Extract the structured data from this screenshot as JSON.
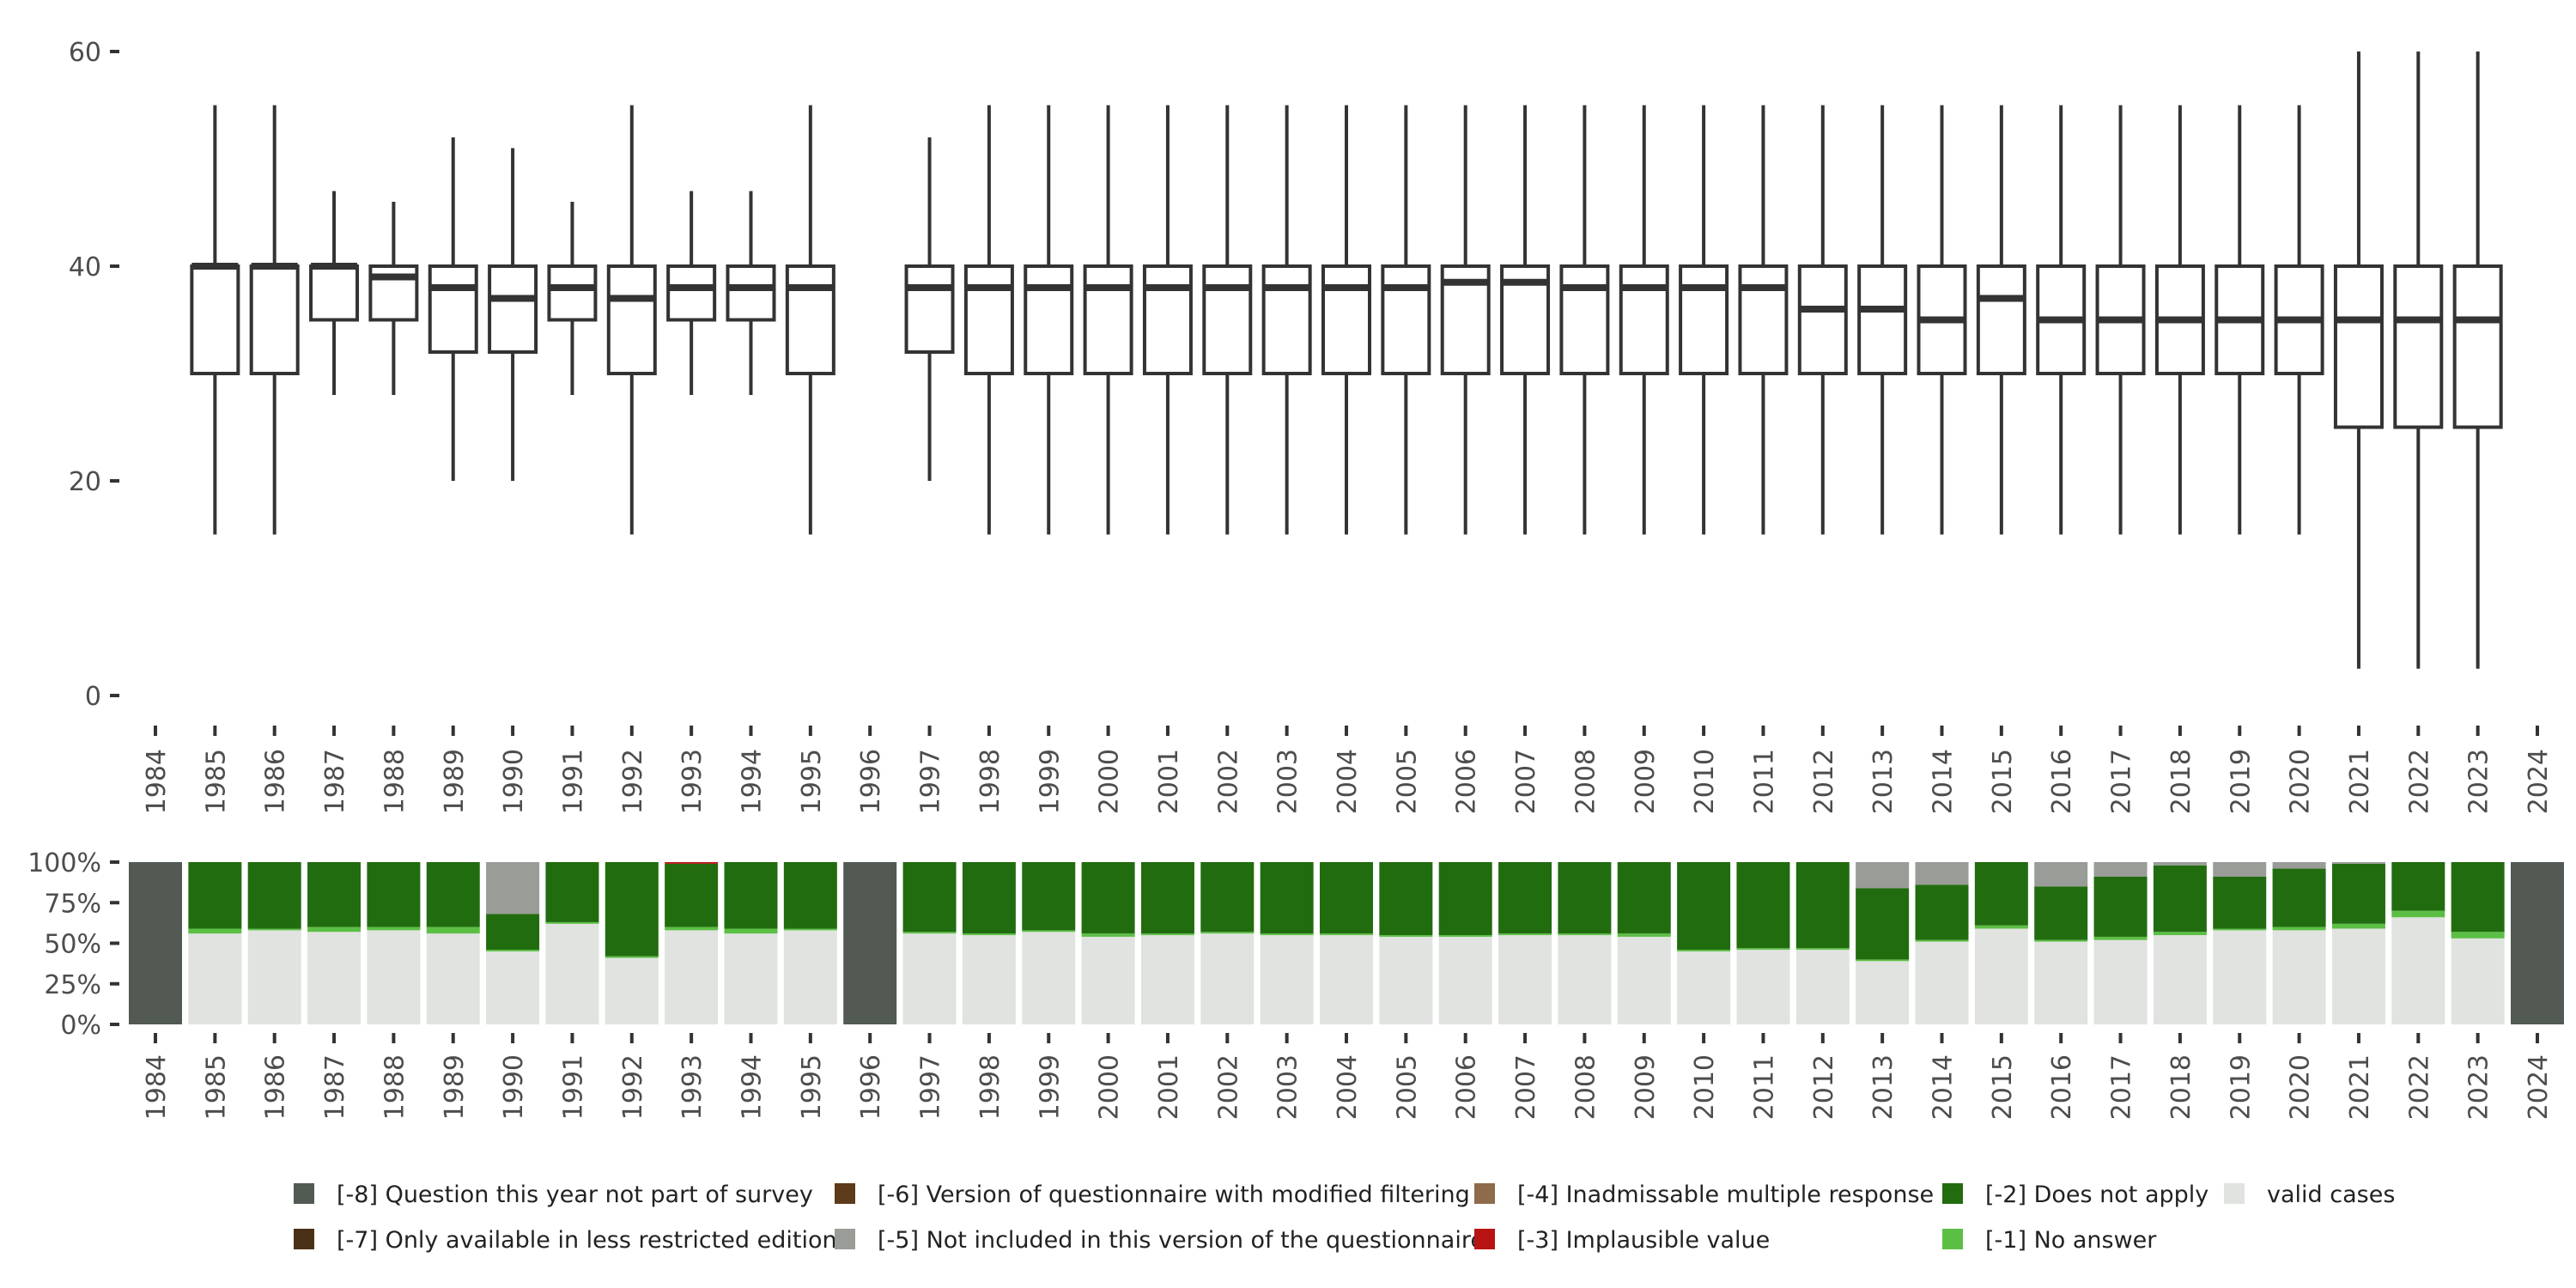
{
  "chart_data": [
    {
      "type": "boxplot",
      "years": [
        1984,
        1985,
        1986,
        1987,
        1988,
        1989,
        1990,
        1991,
        1992,
        1993,
        1994,
        1995,
        1996,
        1997,
        1998,
        1999,
        2000,
        2001,
        2002,
        2003,
        2004,
        2005,
        2006,
        2007,
        2008,
        2009,
        2010,
        2011,
        2012,
        2013,
        2014,
        2015,
        2016,
        2017,
        2018,
        2019,
        2020,
        2021,
        2022,
        2023,
        2024
      ],
      "ylim": [
        0,
        60
      ],
      "y_ticks": [
        0,
        20,
        40,
        60
      ],
      "boxes": [
        {
          "year": 1985,
          "min": 15,
          "q1": 30,
          "median": 40,
          "q3": 40,
          "max": 55
        },
        {
          "year": 1986,
          "min": 15,
          "q1": 30,
          "median": 40,
          "q3": 40,
          "max": 55
        },
        {
          "year": 1987,
          "min": 28,
          "q1": 35,
          "median": 40,
          "q3": 40,
          "max": 47
        },
        {
          "year": 1988,
          "min": 28,
          "q1": 35,
          "median": 39,
          "q3": 40,
          "max": 46
        },
        {
          "year": 1989,
          "min": 20,
          "q1": 32,
          "median": 38,
          "q3": 40,
          "max": 52
        },
        {
          "year": 1990,
          "min": 20,
          "q1": 32,
          "median": 37,
          "q3": 40,
          "max": 51
        },
        {
          "year": 1991,
          "min": 28,
          "q1": 35,
          "median": 38,
          "q3": 40,
          "max": 46
        },
        {
          "year": 1992,
          "min": 15,
          "q1": 30,
          "median": 37,
          "q3": 40,
          "max": 55
        },
        {
          "year": 1993,
          "min": 28,
          "q1": 35,
          "median": 38,
          "q3": 40,
          "max": 47
        },
        {
          "year": 1994,
          "min": 28,
          "q1": 35,
          "median": 38,
          "q3": 40,
          "max": 47
        },
        {
          "year": 1995,
          "min": 15,
          "q1": 30,
          "median": 38,
          "q3": 40,
          "max": 55
        },
        {
          "year": 1997,
          "min": 20,
          "q1": 32,
          "median": 38,
          "q3": 40,
          "max": 52
        },
        {
          "year": 1998,
          "min": 15,
          "q1": 30,
          "median": 38,
          "q3": 40,
          "max": 55
        },
        {
          "year": 1999,
          "min": 15,
          "q1": 30,
          "median": 38,
          "q3": 40,
          "max": 55
        },
        {
          "year": 2000,
          "min": 15,
          "q1": 30,
          "median": 38,
          "q3": 40,
          "max": 55
        },
        {
          "year": 2001,
          "min": 15,
          "q1": 30,
          "median": 38,
          "q3": 40,
          "max": 55
        },
        {
          "year": 2002,
          "min": 15,
          "q1": 30,
          "median": 38,
          "q3": 40,
          "max": 55
        },
        {
          "year": 2003,
          "min": 15,
          "q1": 30,
          "median": 38,
          "q3": 40,
          "max": 55
        },
        {
          "year": 2004,
          "min": 15,
          "q1": 30,
          "median": 38,
          "q3": 40,
          "max": 55
        },
        {
          "year": 2005,
          "min": 15,
          "q1": 30,
          "median": 38,
          "q3": 40,
          "max": 55
        },
        {
          "year": 2006,
          "min": 15,
          "q1": 30,
          "median": 38.5,
          "q3": 40,
          "max": 55
        },
        {
          "year": 2007,
          "min": 15,
          "q1": 30,
          "median": 38.5,
          "q3": 40,
          "max": 55
        },
        {
          "year": 2008,
          "min": 15,
          "q1": 30,
          "median": 38,
          "q3": 40,
          "max": 55
        },
        {
          "year": 2009,
          "min": 15,
          "q1": 30,
          "median": 38,
          "q3": 40,
          "max": 55
        },
        {
          "year": 2010,
          "min": 15,
          "q1": 30,
          "median": 38,
          "q3": 40,
          "max": 55
        },
        {
          "year": 2011,
          "min": 15,
          "q1": 30,
          "median": 38,
          "q3": 40,
          "max": 55
        },
        {
          "year": 2012,
          "min": 15,
          "q1": 30,
          "median": 36,
          "q3": 40,
          "max": 55
        },
        {
          "year": 2013,
          "min": 15,
          "q1": 30,
          "median": 36,
          "q3": 40,
          "max": 55
        },
        {
          "year": 2014,
          "min": 15,
          "q1": 30,
          "median": 35,
          "q3": 40,
          "max": 55
        },
        {
          "year": 2015,
          "min": 15,
          "q1": 30,
          "median": 37,
          "q3": 40,
          "max": 55
        },
        {
          "year": 2016,
          "min": 15,
          "q1": 30,
          "median": 35,
          "q3": 40,
          "max": 55
        },
        {
          "year": 2017,
          "min": 15,
          "q1": 30,
          "median": 35,
          "q3": 40,
          "max": 55
        },
        {
          "year": 2018,
          "min": 15,
          "q1": 30,
          "median": 35,
          "q3": 40,
          "max": 55
        },
        {
          "year": 2019,
          "min": 15,
          "q1": 30,
          "median": 35,
          "q3": 40,
          "max": 55
        },
        {
          "year": 2020,
          "min": 15,
          "q1": 30,
          "median": 35,
          "q3": 40,
          "max": 55
        },
        {
          "year": 2021,
          "min": 2.5,
          "q1": 25,
          "median": 35,
          "q3": 40,
          "max": 60
        },
        {
          "year": 2022,
          "min": 2.5,
          "q1": 25,
          "median": 35,
          "q3": 40,
          "max": 60
        },
        {
          "year": 2023,
          "min": 2.5,
          "q1": 25,
          "median": 35,
          "q3": 40,
          "max": 60
        }
      ]
    },
    {
      "type": "stacked_bar",
      "years": [
        1984,
        1985,
        1986,
        1987,
        1988,
        1989,
        1990,
        1991,
        1992,
        1993,
        1994,
        1995,
        1996,
        1997,
        1998,
        1999,
        2000,
        2001,
        2002,
        2003,
        2004,
        2005,
        2006,
        2007,
        2008,
        2009,
        2010,
        2011,
        2012,
        2013,
        2014,
        2015,
        2016,
        2017,
        2018,
        2019,
        2020,
        2021,
        2022,
        2023,
        2024
      ],
      "ylim": [
        0,
        100
      ],
      "y_ticks": [
        "0%",
        "25%",
        "50%",
        "75%",
        "100%"
      ],
      "stack_order": [
        "valid",
        "no_answer",
        "does_not_apply",
        "implausible",
        "inadmissable",
        "not_included",
        "modified_filtering",
        "less_restricted",
        "not_part"
      ],
      "bars": [
        {
          "year": 1984,
          "not_part": 100
        },
        {
          "year": 1985,
          "valid": 56,
          "no_answer": 3,
          "does_not_apply": 41
        },
        {
          "year": 1986,
          "valid": 58,
          "no_answer": 1,
          "does_not_apply": 41
        },
        {
          "year": 1987,
          "valid": 57,
          "no_answer": 3,
          "does_not_apply": 40
        },
        {
          "year": 1988,
          "valid": 58,
          "no_answer": 2,
          "does_not_apply": 40
        },
        {
          "year": 1989,
          "valid": 56,
          "no_answer": 4,
          "does_not_apply": 40
        },
        {
          "year": 1990,
          "valid": 45,
          "no_answer": 1,
          "does_not_apply": 22,
          "not_included": 32
        },
        {
          "year": 1991,
          "valid": 62,
          "no_answer": 1,
          "does_not_apply": 37
        },
        {
          "year": 1992,
          "valid": 41,
          "no_answer": 1,
          "does_not_apply": 58
        },
        {
          "year": 1993,
          "valid": 58,
          "no_answer": 2,
          "does_not_apply": 39,
          "implausible": 1
        },
        {
          "year": 1994,
          "valid": 56,
          "no_answer": 3,
          "does_not_apply": 41
        },
        {
          "year": 1995,
          "valid": 58,
          "no_answer": 1,
          "does_not_apply": 41
        },
        {
          "year": 1996,
          "not_part": 100
        },
        {
          "year": 1997,
          "valid": 56,
          "no_answer": 1,
          "does_not_apply": 43
        },
        {
          "year": 1998,
          "valid": 55,
          "no_answer": 1,
          "does_not_apply": 44
        },
        {
          "year": 1999,
          "valid": 57,
          "no_answer": 1,
          "does_not_apply": 42
        },
        {
          "year": 2000,
          "valid": 54,
          "no_answer": 2,
          "does_not_apply": 44
        },
        {
          "year": 2001,
          "valid": 55,
          "no_answer": 1,
          "does_not_apply": 44
        },
        {
          "year": 2002,
          "valid": 56,
          "no_answer": 1,
          "does_not_apply": 43
        },
        {
          "year": 2003,
          "valid": 55,
          "no_answer": 1,
          "does_not_apply": 44
        },
        {
          "year": 2004,
          "valid": 55,
          "no_answer": 1,
          "does_not_apply": 44
        },
        {
          "year": 2005,
          "valid": 54,
          "no_answer": 1,
          "does_not_apply": 45
        },
        {
          "year": 2006,
          "valid": 54,
          "no_answer": 1,
          "does_not_apply": 45
        },
        {
          "year": 2007,
          "valid": 55,
          "no_answer": 1,
          "does_not_apply": 44
        },
        {
          "year": 2008,
          "valid": 55,
          "no_answer": 1,
          "does_not_apply": 44
        },
        {
          "year": 2009,
          "valid": 54,
          "no_answer": 2,
          "does_not_apply": 44
        },
        {
          "year": 2010,
          "valid": 45,
          "no_answer": 1,
          "does_not_apply": 54
        },
        {
          "year": 2011,
          "valid": 46,
          "no_answer": 1,
          "does_not_apply": 53
        },
        {
          "year": 2012,
          "valid": 46,
          "no_answer": 1,
          "does_not_apply": 53
        },
        {
          "year": 2013,
          "valid": 39,
          "no_answer": 1,
          "does_not_apply": 44,
          "not_included": 16
        },
        {
          "year": 2014,
          "valid": 51,
          "no_answer": 1,
          "does_not_apply": 34,
          "not_included": 14
        },
        {
          "year": 2015,
          "valid": 59,
          "no_answer": 2,
          "does_not_apply": 39
        },
        {
          "year": 2016,
          "valid": 51,
          "no_answer": 1,
          "does_not_apply": 33,
          "not_included": 15
        },
        {
          "year": 2017,
          "valid": 52,
          "no_answer": 2,
          "does_not_apply": 37,
          "not_included": 9
        },
        {
          "year": 2018,
          "valid": 55,
          "no_answer": 2,
          "does_not_apply": 41,
          "not_included": 2
        },
        {
          "year": 2019,
          "valid": 58,
          "no_answer": 1,
          "does_not_apply": 32,
          "not_included": 9
        },
        {
          "year": 2020,
          "valid": 58,
          "no_answer": 2,
          "does_not_apply": 36,
          "not_included": 4
        },
        {
          "year": 2021,
          "valid": 59,
          "no_answer": 3,
          "does_not_apply": 37,
          "not_included": 1
        },
        {
          "year": 2022,
          "valid": 66,
          "no_answer": 4,
          "does_not_apply": 30
        },
        {
          "year": 2023,
          "valid": 53,
          "no_answer": 4,
          "does_not_apply": 43
        },
        {
          "year": 2024,
          "not_part": 100
        }
      ]
    }
  ],
  "legend": [
    {
      "key": "not_part",
      "label": "[-8] Question this year not part of survey",
      "color": "#525a53"
    },
    {
      "key": "less_restricted",
      "label": "[-7] Only available in less restricted edition",
      "color": "#4a3017"
    },
    {
      "key": "modified_filtering",
      "label": "[-6] Version of questionnaire with modified filtering",
      "color": "#5d3a19"
    },
    {
      "key": "not_included",
      "label": "[-5] Not included in this version of the questionnaire",
      "color": "#9a9c97"
    },
    {
      "key": "inadmissable",
      "label": "[-4] Inadmissable multiple response",
      "color": "#8e6b4a"
    },
    {
      "key": "implausible",
      "label": "[-3] Implausible value",
      "color": "#b81414"
    },
    {
      "key": "does_not_apply",
      "label": "[-2] Does not apply",
      "color": "#226c10"
    },
    {
      "key": "no_answer",
      "label": "[-1] No answer",
      "color": "#5cbf45"
    },
    {
      "key": "valid",
      "label": "valid cases",
      "color": "#e0e3df"
    }
  ]
}
